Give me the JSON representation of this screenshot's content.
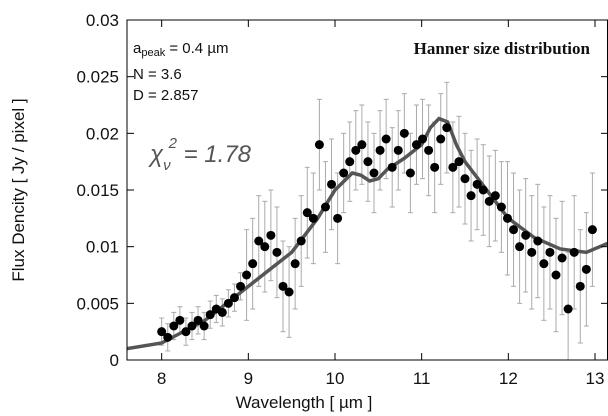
{
  "chart_data": {
    "type": "scatter",
    "title": "Hanner size distribution",
    "x_label": "Wavelength   [ µm ]",
    "y_label": "Flux Dencity   [ Jy / pixel ]",
    "annotations": {
      "a_peak": {
        "base": "a",
        "sub": "peak",
        "text": " = 0.4 µm"
      },
      "N": "N = 3.6",
      "D": "D = 2.857",
      "chi": {
        "base": "χ",
        "sub": "ν",
        "sup": "2",
        "text": " = 1.78"
      }
    },
    "xlim": [
      7.6,
      13.15
    ],
    "xticks": [
      8,
      9,
      10,
      11,
      12,
      13
    ],
    "ylim": [
      0,
      0.03
    ],
    "yticks": [
      0,
      0.005,
      0.01,
      0.015,
      0.02,
      0.025,
      0.03
    ],
    "color": "#000000",
    "error_color": "#aaaaaa",
    "x": [
      8.0,
      8.07,
      8.14,
      8.21,
      8.28,
      8.35,
      8.42,
      8.49,
      8.56,
      8.63,
      8.7,
      8.77,
      8.84,
      8.91,
      8.98,
      9.05,
      9.12,
      9.19,
      9.26,
      9.33,
      9.4,
      9.47,
      9.54,
      9.61,
      9.68,
      9.75,
      9.82,
      9.89,
      9.96,
      10.03,
      10.1,
      10.17,
      10.24,
      10.31,
      10.38,
      10.45,
      10.52,
      10.59,
      10.66,
      10.73,
      10.8,
      10.87,
      10.94,
      11.01,
      11.08,
      11.15,
      11.22,
      11.29,
      11.36,
      11.43,
      11.5,
      11.57,
      11.64,
      11.71,
      11.78,
      11.85,
      11.92,
      11.99,
      12.06,
      12.13,
      12.2,
      12.27,
      12.34,
      12.41,
      12.48,
      12.55,
      12.62,
      12.69,
      12.76,
      12.83,
      12.9,
      12.97
    ],
    "values": [
      0.0025,
      0.002,
      0.003,
      0.0035,
      0.0025,
      0.003,
      0.0035,
      0.003,
      0.004,
      0.0045,
      0.0042,
      0.005,
      0.0055,
      0.0065,
      0.0075,
      0.0085,
      0.0105,
      0.01,
      0.011,
      0.0095,
      0.0065,
      0.006,
      0.0085,
      0.0105,
      0.013,
      0.0125,
      0.019,
      0.0135,
      0.0155,
      0.0125,
      0.0165,
      0.0175,
      0.0185,
      0.019,
      0.0175,
      0.0165,
      0.0185,
      0.0195,
      0.017,
      0.0185,
      0.02,
      0.0165,
      0.019,
      0.0195,
      0.0185,
      0.017,
      0.0195,
      0.0205,
      0.017,
      0.0175,
      0.016,
      0.0145,
      0.0155,
      0.015,
      0.014,
      0.0145,
      0.0135,
      0.0125,
      0.0115,
      0.01,
      0.011,
      0.0095,
      0.0105,
      0.0085,
      0.0095,
      0.0075,
      0.009,
      0.0045,
      0.0095,
      0.0065,
      0.008,
      0.0115
    ],
    "errors": [
      0.0012,
      0.0012,
      0.0012,
      0.0012,
      0.0012,
      0.0012,
      0.0012,
      0.0012,
      0.0012,
      0.0012,
      0.0012,
      0.0012,
      0.0012,
      0.0012,
      0.004,
      0.004,
      0.004,
      0.004,
      0.004,
      0.004,
      0.004,
      0.004,
      0.004,
      0.004,
      0.004,
      0.004,
      0.004,
      0.004,
      0.004,
      0.004,
      0.0035,
      0.0035,
      0.0035,
      0.0035,
      0.0035,
      0.0035,
      0.0035,
      0.0035,
      0.0035,
      0.0035,
      0.0035,
      0.0035,
      0.0035,
      0.0035,
      0.004,
      0.004,
      0.004,
      0.004,
      0.004,
      0.004,
      0.004,
      0.004,
      0.004,
      0.004,
      0.004,
      0.004,
      0.004,
      0.005,
      0.005,
      0.005,
      0.005,
      0.005,
      0.005,
      0.005,
      0.005,
      0.005,
      0.005,
      0.005,
      0.005,
      0.005,
      0.005,
      0.005
    ],
    "model": {
      "color": "#555555",
      "x": [
        7.6,
        8.0,
        8.5,
        9.0,
        9.5,
        9.8,
        10.0,
        10.2,
        10.3,
        10.4,
        10.5,
        10.6,
        10.8,
        11.0,
        11.1,
        11.2,
        11.3,
        11.4,
        11.5,
        11.7,
        12.0,
        12.3,
        12.6,
        12.9,
        13.15
      ],
      "values": [
        0.001,
        0.0015,
        0.0035,
        0.0065,
        0.0095,
        0.0125,
        0.015,
        0.0165,
        0.0163,
        0.0158,
        0.016,
        0.0168,
        0.0178,
        0.019,
        0.0205,
        0.0213,
        0.021,
        0.019,
        0.0175,
        0.0155,
        0.0125,
        0.0108,
        0.0098,
        0.0095,
        0.0103
      ]
    }
  }
}
